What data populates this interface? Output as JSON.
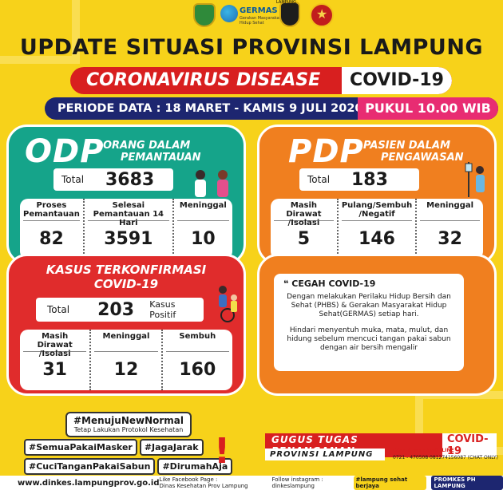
{
  "header": {
    "germas_label": "GERMAS",
    "germas_sub": "Gerakan Masyarakat Hidup Sehat",
    "polri_label": "LAMPUNG",
    "title": "UPDATE SITUASI PROVINSI LAMPUNG",
    "banner_left": "CORONAVIRUS DISEASE",
    "banner_right": "COVID-19",
    "periode": "PERIODE DATA : 18 MARET - KAMIS 9 JULI 2020",
    "pukul": "PUKUL 10.00 WIB"
  },
  "odp": {
    "code": "ODP",
    "name_line1": "ORANG DALAM",
    "name_line2": "PEMANTAUAN",
    "total_label": "Total",
    "total_value": "3683",
    "cols": [
      {
        "label": "Proses Pemantauan",
        "value": "82"
      },
      {
        "label": "Selesai Pemantauan 14 Hari",
        "value": "3591"
      },
      {
        "label": "Meninggal",
        "value": "10"
      }
    ]
  },
  "pdp": {
    "code": "PDP",
    "name_line1": "PASIEN DALAM",
    "name_line2": "PENGAWASAN",
    "total_label": "Total",
    "total_value": "183",
    "cols": [
      {
        "label": "Masih Dirawat /Isolasi",
        "value": "5"
      },
      {
        "label": "Pulang/Sembuh /Negatif",
        "value": "146"
      },
      {
        "label": "Meninggal",
        "value": "32"
      }
    ]
  },
  "kasus": {
    "title_line1": "KASUS TERKONFIRMASI",
    "title_line2": "COVID-19",
    "total_label": "Total",
    "total_value": "203",
    "positif_label": "Kasus Positif",
    "cols": [
      {
        "label": "Masih Dirawat /Isolasi",
        "value": "31"
      },
      {
        "label": "Meninggal",
        "value": "12"
      },
      {
        "label": "Sembuh",
        "value": "160"
      }
    ]
  },
  "cegah": {
    "heading": "CEGAH COVID-19",
    "p1": "Dengan melakukan Perilaku Hidup Bersih dan Sehat (PHBS) & Gerakan Masyarakat Hidup Sehat(GERMAS) setiap hari.",
    "p2": "Hindari menyentuh muka, mata, mulut, dan hidung sebelum mencuci tangan pakai sabun dengan air bersih mengalir"
  },
  "hashtags": {
    "main": "#MenujuNewNormal",
    "main_sub": "Tetap Lakukan Protokol Kesehatan",
    "row1": [
      "#SemuaPakaiMasker",
      "#JagaJarak"
    ],
    "row2": [
      "#CuciTanganPakaiSabun",
      "#DirumahAja"
    ]
  },
  "gugus": {
    "line1": "GUGUS TUGAS PENANGANAN",
    "line1b": "COVID-19",
    "line2": "PROVINSI LAMPUNG",
    "contact_label": "CALL CENTER   HOTLINE",
    "contact": "0721 - 470508   081274156087 (CHAT ONLY)"
  },
  "footer": {
    "website": "www.dinkes.lampungprov.go.id",
    "fb_label": "Like Facebook Page :",
    "fb": "Dinas Kesehatan Prov Lampung",
    "ig_label": "Follow instagram :",
    "ig": "dinkeslampung",
    "badge1": "#lampung sehat berjaya",
    "badge2": "PROMKES PH LAMPUNG"
  },
  "colors": {
    "background": "#f7d21a",
    "odp": "#15a48a",
    "pdp": "#f07f1f",
    "kasus": "#e02c2c",
    "navy": "#1d2670",
    "pink": "#e82c72"
  }
}
